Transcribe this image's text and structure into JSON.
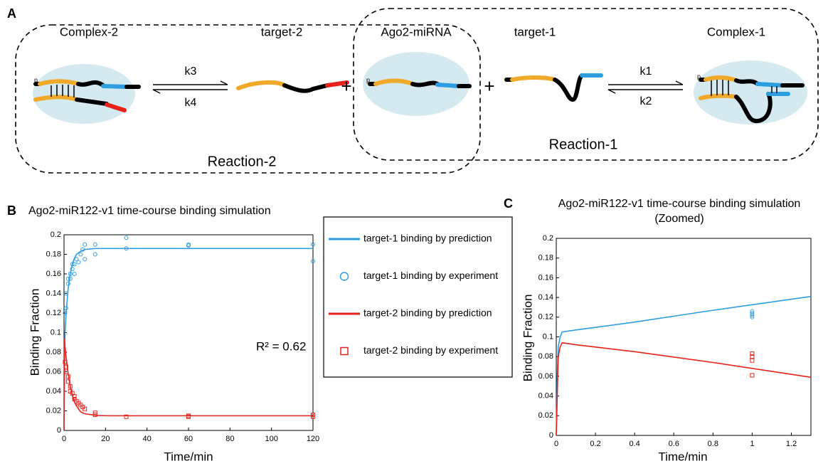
{
  "panel_labels": [
    "A",
    "B",
    "C"
  ],
  "diagram": {
    "nodes": [
      "Complex-2",
      "target-2",
      "Ago2-miRNA",
      "target-1",
      "Complex-1"
    ],
    "rates": [
      "k3",
      "k4",
      "k1",
      "k2"
    ],
    "plus": "+",
    "end_label": "p",
    "reactions": [
      "Reaction-2",
      "Reaction-1"
    ]
  },
  "chart_data": [
    {
      "type": "line",
      "title": "Ago2-miR122-v1 time-course binding simulation",
      "x_label": "Time/min",
      "y_label": "Binding Fraction",
      "annotation": "R² = 0.62",
      "xlim": [
        0,
        120
      ],
      "ylim": [
        0,
        0.2
      ],
      "xticks": [
        0,
        20,
        40,
        60,
        80,
        100,
        120
      ],
      "yticks": [
        0,
        0.02,
        0.04,
        0.06,
        0.08,
        0.1,
        0.12,
        0.14,
        0.16,
        0.18,
        0.2
      ],
      "series": [
        {
          "name": "target-1 binding by prediction",
          "type": "line",
          "color": "#2d9fe0",
          "x": [
            0,
            0.5,
            1,
            2,
            3,
            4,
            5,
            6,
            8,
            10,
            15,
            20,
            30,
            60,
            120
          ],
          "values": [
            0,
            0.1,
            0.12,
            0.145,
            0.16,
            0.17,
            0.176,
            0.18,
            0.183,
            0.185,
            0.186,
            0.186,
            0.186,
            0.186,
            0.186
          ]
        },
        {
          "name": "target-1 binding by experiment",
          "type": "scatter",
          "marker": "circle",
          "color": "#2d9fe0",
          "x": [
            0.5,
            1,
            1,
            2,
            2,
            3,
            3,
            4,
            4,
            5,
            5,
            6,
            7,
            8,
            9,
            10,
            10,
            15,
            15,
            30,
            30,
            60,
            60,
            120,
            120
          ],
          "values": [
            0.12,
            0.125,
            0.14,
            0.15,
            0.155,
            0.16,
            0.155,
            0.165,
            0.17,
            0.16,
            0.17,
            0.175,
            0.172,
            0.18,
            0.185,
            0.19,
            0.175,
            0.18,
            0.19,
            0.186,
            0.197,
            0.189,
            0.19,
            0.19,
            0.173
          ]
        },
        {
          "name": "target-2 binding by prediction",
          "type": "line",
          "color": "#e8221b",
          "x": [
            0,
            0.03,
            0.5,
            1,
            2,
            3,
            4,
            5,
            6,
            8,
            10,
            15,
            20,
            30,
            60,
            120
          ],
          "values": [
            0,
            0.094,
            0.085,
            0.075,
            0.058,
            0.045,
            0.036,
            0.029,
            0.025,
            0.019,
            0.017,
            0.0155,
            0.015,
            0.015,
            0.015,
            0.015
          ]
        },
        {
          "name": "target-2 binding by experiment",
          "type": "scatter",
          "marker": "square",
          "color": "#e8221b",
          "x": [
            0.5,
            1,
            1,
            2,
            2,
            3,
            3,
            4,
            5,
            5,
            6,
            7,
            8,
            9,
            10,
            15,
            15,
            30,
            60,
            60,
            120,
            120
          ],
          "values": [
            0.07,
            0.065,
            0.06,
            0.055,
            0.05,
            0.045,
            0.04,
            0.038,
            0.035,
            0.032,
            0.03,
            0.028,
            0.026,
            0.024,
            0.022,
            0.018,
            0.016,
            0.014,
            0.015,
            0.014,
            0.016,
            0.014
          ]
        }
      ]
    },
    {
      "type": "line",
      "title": "Ago2-miR122-v1 time-course binding simulation",
      "subtitle": "(Zoomed)",
      "x_label": "Time/min",
      "y_label": "Binding Fraction",
      "xlim": [
        0,
        1.3
      ],
      "ylim": [
        0,
        0.2
      ],
      "xticks": [
        0,
        0.2,
        0.4,
        0.6,
        0.8,
        1,
        1.2
      ],
      "yticks": [
        0,
        0.02,
        0.04,
        0.06,
        0.08,
        0.1,
        0.12,
        0.14,
        0.16,
        0.18,
        0.2
      ],
      "series": [
        {
          "type": "line",
          "color": "#2d9fe0",
          "x": [
            0,
            0.005,
            0.01,
            0.02,
            0.03,
            0.1,
            0.4,
            0.8,
            1.3
          ],
          "values": [
            0,
            0.06,
            0.09,
            0.1,
            0.105,
            0.107,
            0.115,
            0.127,
            0.141
          ]
        },
        {
          "type": "scatter",
          "marker": "circle",
          "color": "#2d9fe0",
          "x": [
            1,
            1,
            1,
            1
          ],
          "values": [
            0.12,
            0.122,
            0.124,
            0.126
          ]
        },
        {
          "type": "line",
          "color": "#e8221b",
          "x": [
            0,
            0.01,
            0.02,
            0.03,
            0.1,
            0.4,
            0.8,
            1.3
          ],
          "values": [
            0,
            0.08,
            0.09,
            0.094,
            0.092,
            0.085,
            0.074,
            0.059
          ]
        },
        {
          "type": "scatter",
          "marker": "square",
          "color": "#e8221b",
          "x": [
            1,
            1,
            1,
            1
          ],
          "values": [
            0.061,
            0.076,
            0.08,
            0.083
          ]
        }
      ]
    }
  ]
}
